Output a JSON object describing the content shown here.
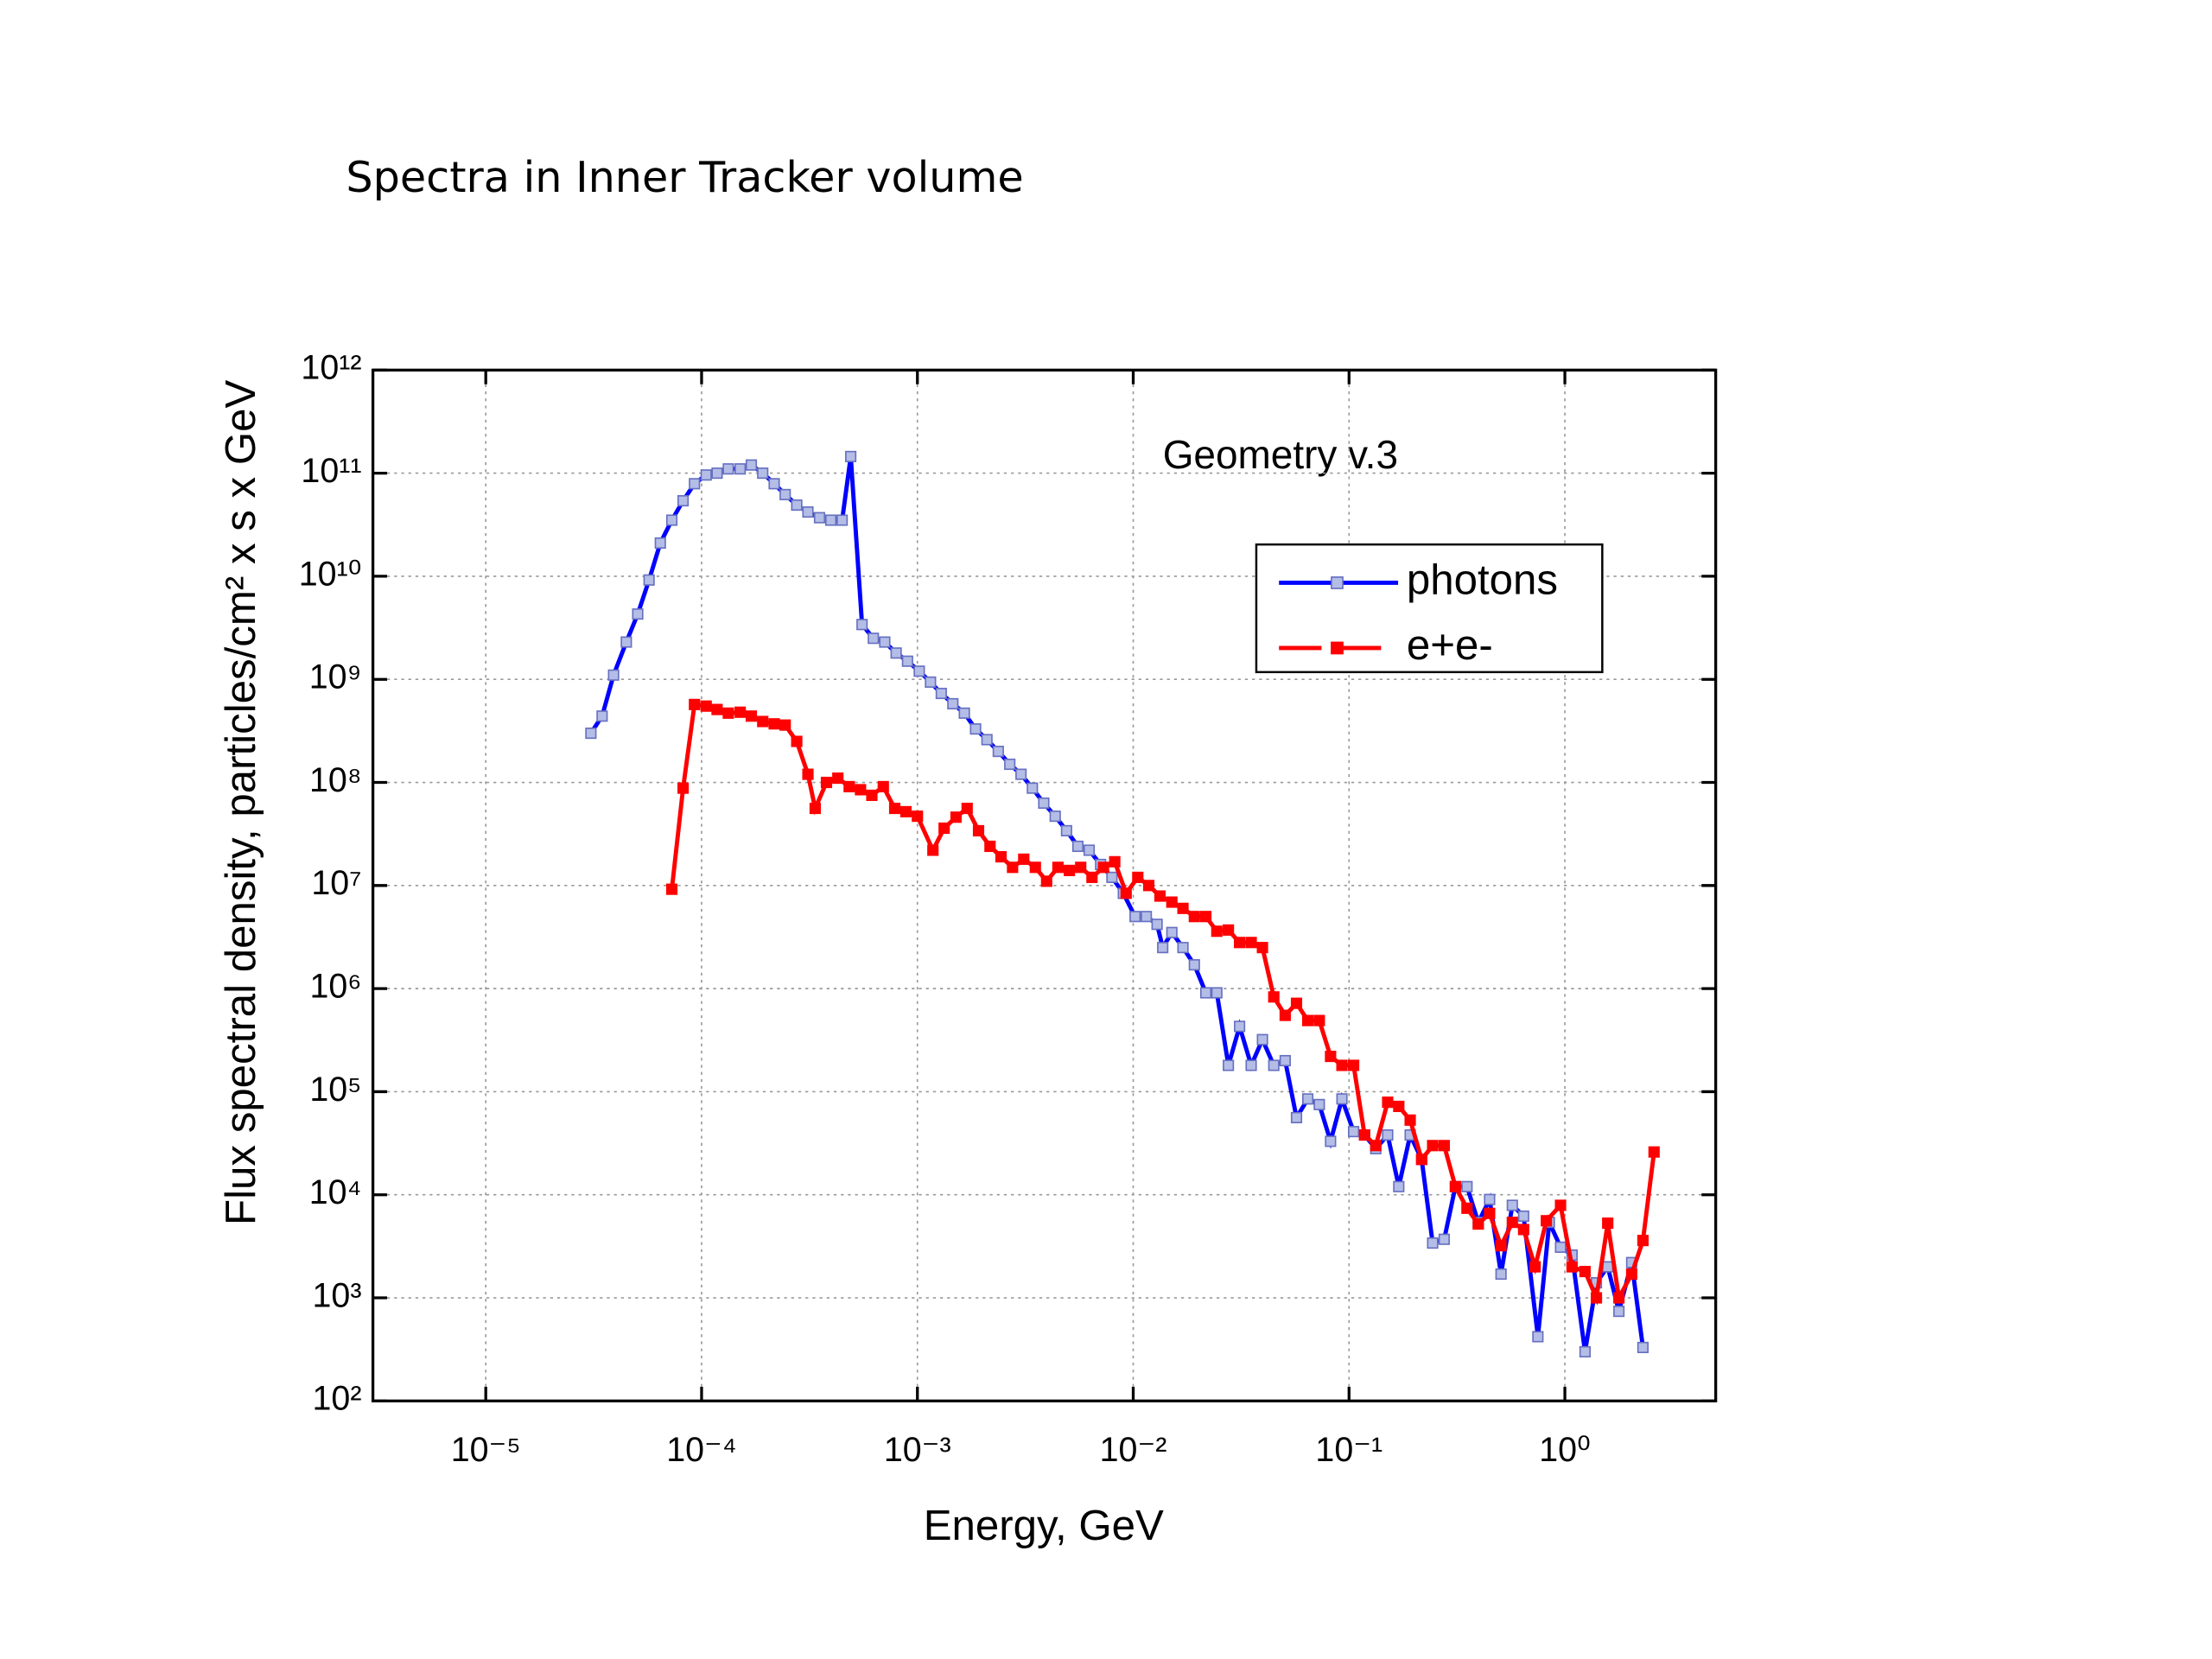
{
  "chart_data": {
    "type": "line",
    "title": "Spectra in Inner Tracker volume",
    "xlabel": "Energy, GeV",
    "ylabel": "Flux spectral density, particles/cm² x s x GeV",
    "annotation": "Geometry v.3",
    "xscale": "log",
    "yscale": "log",
    "grid": true,
    "legend": "upper right",
    "xlim": [
      3e-06,
      5
    ],
    "ylim": [
      100,
      1000000000000.0
    ],
    "xticks": [
      {
        "value": 1e-05,
        "label": "10⁻⁵"
      },
      {
        "value": 0.0001,
        "label": "10⁻⁴"
      },
      {
        "value": 0.001,
        "label": "10⁻³"
      },
      {
        "value": 0.01,
        "label": "10⁻²"
      },
      {
        "value": 0.1,
        "label": "10⁻¹"
      },
      {
        "value": 1,
        "label": "10⁰"
      }
    ],
    "yticks": [
      {
        "value": 100,
        "label": "10²"
      },
      {
        "value": 1000,
        "label": "10³"
      },
      {
        "value": 10000,
        "label": "10⁴"
      },
      {
        "value": 100000,
        "label": "10⁵"
      },
      {
        "value": 1000000,
        "label": "10⁶"
      },
      {
        "value": 10000000,
        "label": "10⁷"
      },
      {
        "value": 100000000,
        "label": "10⁸"
      },
      {
        "value": 1000000000,
        "label": "10⁹"
      },
      {
        "value": 10000000000,
        "label": "10¹⁰"
      },
      {
        "value": 100000000000,
        "label": "10¹¹"
      },
      {
        "value": 1000000000000,
        "label": "10¹²"
      }
    ],
    "series": [
      {
        "name": "photons",
        "color": "#0000ff",
        "marker_fill": "#b4bde6",
        "dash": false,
        "x": [
          3.07e-05,
          3.46e-05,
          3.91e-05,
          4.48e-05,
          5.06e-05,
          5.71e-05,
          6.44e-05,
          7.28e-05,
          8.21e-05,
          9.27e-05,
          0.000105,
          0.000118,
          0.000133,
          0.000151,
          0.00017,
          0.000192,
          0.000217,
          0.000244,
          0.000276,
          0.000311,
          0.000352,
          0.000397,
          0.000448,
          0.000491,
          0.000554,
          0.000625,
          0.000706,
          0.000797,
          0.0009,
          0.00102,
          0.00115,
          0.00129,
          0.00146,
          0.00165,
          0.00186,
          0.0021,
          0.00237,
          0.00268,
          0.00302,
          0.00341,
          0.00385,
          0.00435,
          0.00491,
          0.00554,
          0.00625,
          0.00706,
          0.00797,
          0.009,
          0.0102,
          0.0115,
          0.0129,
          0.0137,
          0.0151,
          0.017,
          0.0192,
          0.0217,
          0.0244,
          0.0276,
          0.0311,
          0.0352,
          0.0397,
          0.0448,
          0.0506,
          0.0571,
          0.0644,
          0.0728,
          0.0821,
          0.0927,
          0.105,
          0.118,
          0.133,
          0.151,
          0.17,
          0.192,
          0.217,
          0.244,
          0.276,
          0.311,
          0.352,
          0.397,
          0.448,
          0.506,
          0.571,
          0.644,
          0.75,
          0.847,
          0.955,
          1.08,
          1.24,
          1.4,
          1.58,
          1.78,
          2.04,
          2.3
        ],
        "values": [
          300000000.0,
          440000000.0,
          1100000000.0,
          2300000000.0,
          4300000000.0,
          9200000000.0,
          21000000000.0,
          35000000000.0,
          54000000000.0,
          79000000000.0,
          96000000000.0,
          100000000000.0,
          110000000000.0,
          110000000000.0,
          120000000000.0,
          100000000000.0,
          79000000000.0,
          62000000000.0,
          49000000000.0,
          42000000000.0,
          37000000000.0,
          35000000000.0,
          35000000000.0,
          145000000000.0,
          3400000000.0,
          2500000000.0,
          2300000000.0,
          1800000000.0,
          1500000000.0,
          1200000000.0,
          940000000.0,
          730000000.0,
          580000000.0,
          470000000.0,
          330000000.0,
          260000000.0,
          200000000.0,
          150000000.0,
          120000000.0,
          88000000.0,
          63000000.0,
          47000000.0,
          34000000.0,
          24000000.0,
          22000000.0,
          16000000.0,
          12000000.0,
          8400000.0,
          5000000.0,
          5000000.0,
          4200000.0,
          2500000.0,
          3500000.0,
          2500000.0,
          1700000.0,
          910000.0,
          910000.0,
          180000.0,
          430000.0,
          180000.0,
          320000.0,
          180000.0,
          200000.0,
          56000.0,
          85000.0,
          75000.0,
          33000.0,
          85000.0,
          41000.0,
          38000.0,
          28000.0,
          38000.0,
          12000.0,
          38000.0,
          22000.0,
          3400.0,
          3700.0,
          12000.0,
          12000.0,
          5400.0,
          9000.0,
          1700.0,
          7900.0,
          6200.0,
          420,
          5400.0,
          3100.0,
          2600.0,
          300,
          1400.0,
          2000.0,
          740,
          2200.0,
          330
        ]
      },
      {
        "name": "e+e-",
        "color": "#ff0000",
        "marker_fill": "#ff0000",
        "dash": true,
        "x": [
          7.28e-05,
          8.21e-05,
          9.27e-05,
          0.000105,
          0.000118,
          0.000133,
          0.000151,
          0.00017,
          0.000192,
          0.000217,
          0.000244,
          0.000276,
          0.000311,
          0.000336,
          0.000379,
          0.000428,
          0.000483,
          0.000545,
          0.000615,
          0.000695,
          0.000785,
          0.000885,
          0.001,
          0.00118,
          0.00133,
          0.00151,
          0.0017,
          0.00192,
          0.00217,
          0.00244,
          0.00276,
          0.00311,
          0.00352,
          0.00397,
          0.00448,
          0.00506,
          0.00571,
          0.00644,
          0.00728,
          0.00821,
          0.00927,
          0.0105,
          0.0118,
          0.0133,
          0.0151,
          0.017,
          0.0192,
          0.0217,
          0.0244,
          0.0276,
          0.0311,
          0.0352,
          0.0397,
          0.0448,
          0.0506,
          0.0571,
          0.0644,
          0.0728,
          0.0821,
          0.0927,
          0.105,
          0.118,
          0.133,
          0.151,
          0.17,
          0.192,
          0.217,
          0.244,
          0.276,
          0.311,
          0.352,
          0.397,
          0.448,
          0.506,
          0.571,
          0.644,
          0.728,
          0.821,
          0.955,
          1.08,
          1.24,
          1.4,
          1.58,
          1.78,
          2.04,
          2.3,
          2.59
        ],
        "values": [
          9200000.0,
          88000000.0,
          570000000.0,
          550000000.0,
          510000000.0,
          470000000.0,
          480000000.0,
          440000000.0,
          390000000.0,
          370000000.0,
          360000000.0,
          250000000.0,
          120000000.0,
          56000000.0,
          100000000.0,
          110000000.0,
          91000000.0,
          85000000.0,
          75000000.0,
          91000000.0,
          56000000.0,
          52000000.0,
          47000000.0,
          22000000.0,
          36000000.0,
          46000000.0,
          56000000.0,
          34000000.0,
          24000000.0,
          19000000.0,
          15000000.0,
          18000000.0,
          15000000.0,
          11000000.0,
          15000000.0,
          14000000.0,
          15000000.0,
          12000000.0,
          15000000.0,
          17000000.0,
          8400000.0,
          12000000.0,
          10000000.0,
          7900000.0,
          6900000.0,
          6000000.0,
          5000000.0,
          5000000.0,
          3600000.0,
          3700000.0,
          2800000.0,
          2800000.0,
          2500000.0,
          830000.0,
          550000.0,
          720000.0,
          490000.0,
          490000.0,
          220000.0,
          180000.0,
          180000.0,
          38000.0,
          30000.0,
          79000.0,
          72000.0,
          53000.0,
          22000.0,
          30000.0,
          30000.0,
          12000.0,
          7400.0,
          5200.0,
          6600.0,
          3200.0,
          5400.0,
          4600.0,
          2000.0,
          5600.0,
          7900.0,
          2000.0,
          1800.0,
          1000.0,
          5300.0,
          1000.0,
          1700.0,
          3600.0,
          26000.0
        ]
      }
    ]
  }
}
